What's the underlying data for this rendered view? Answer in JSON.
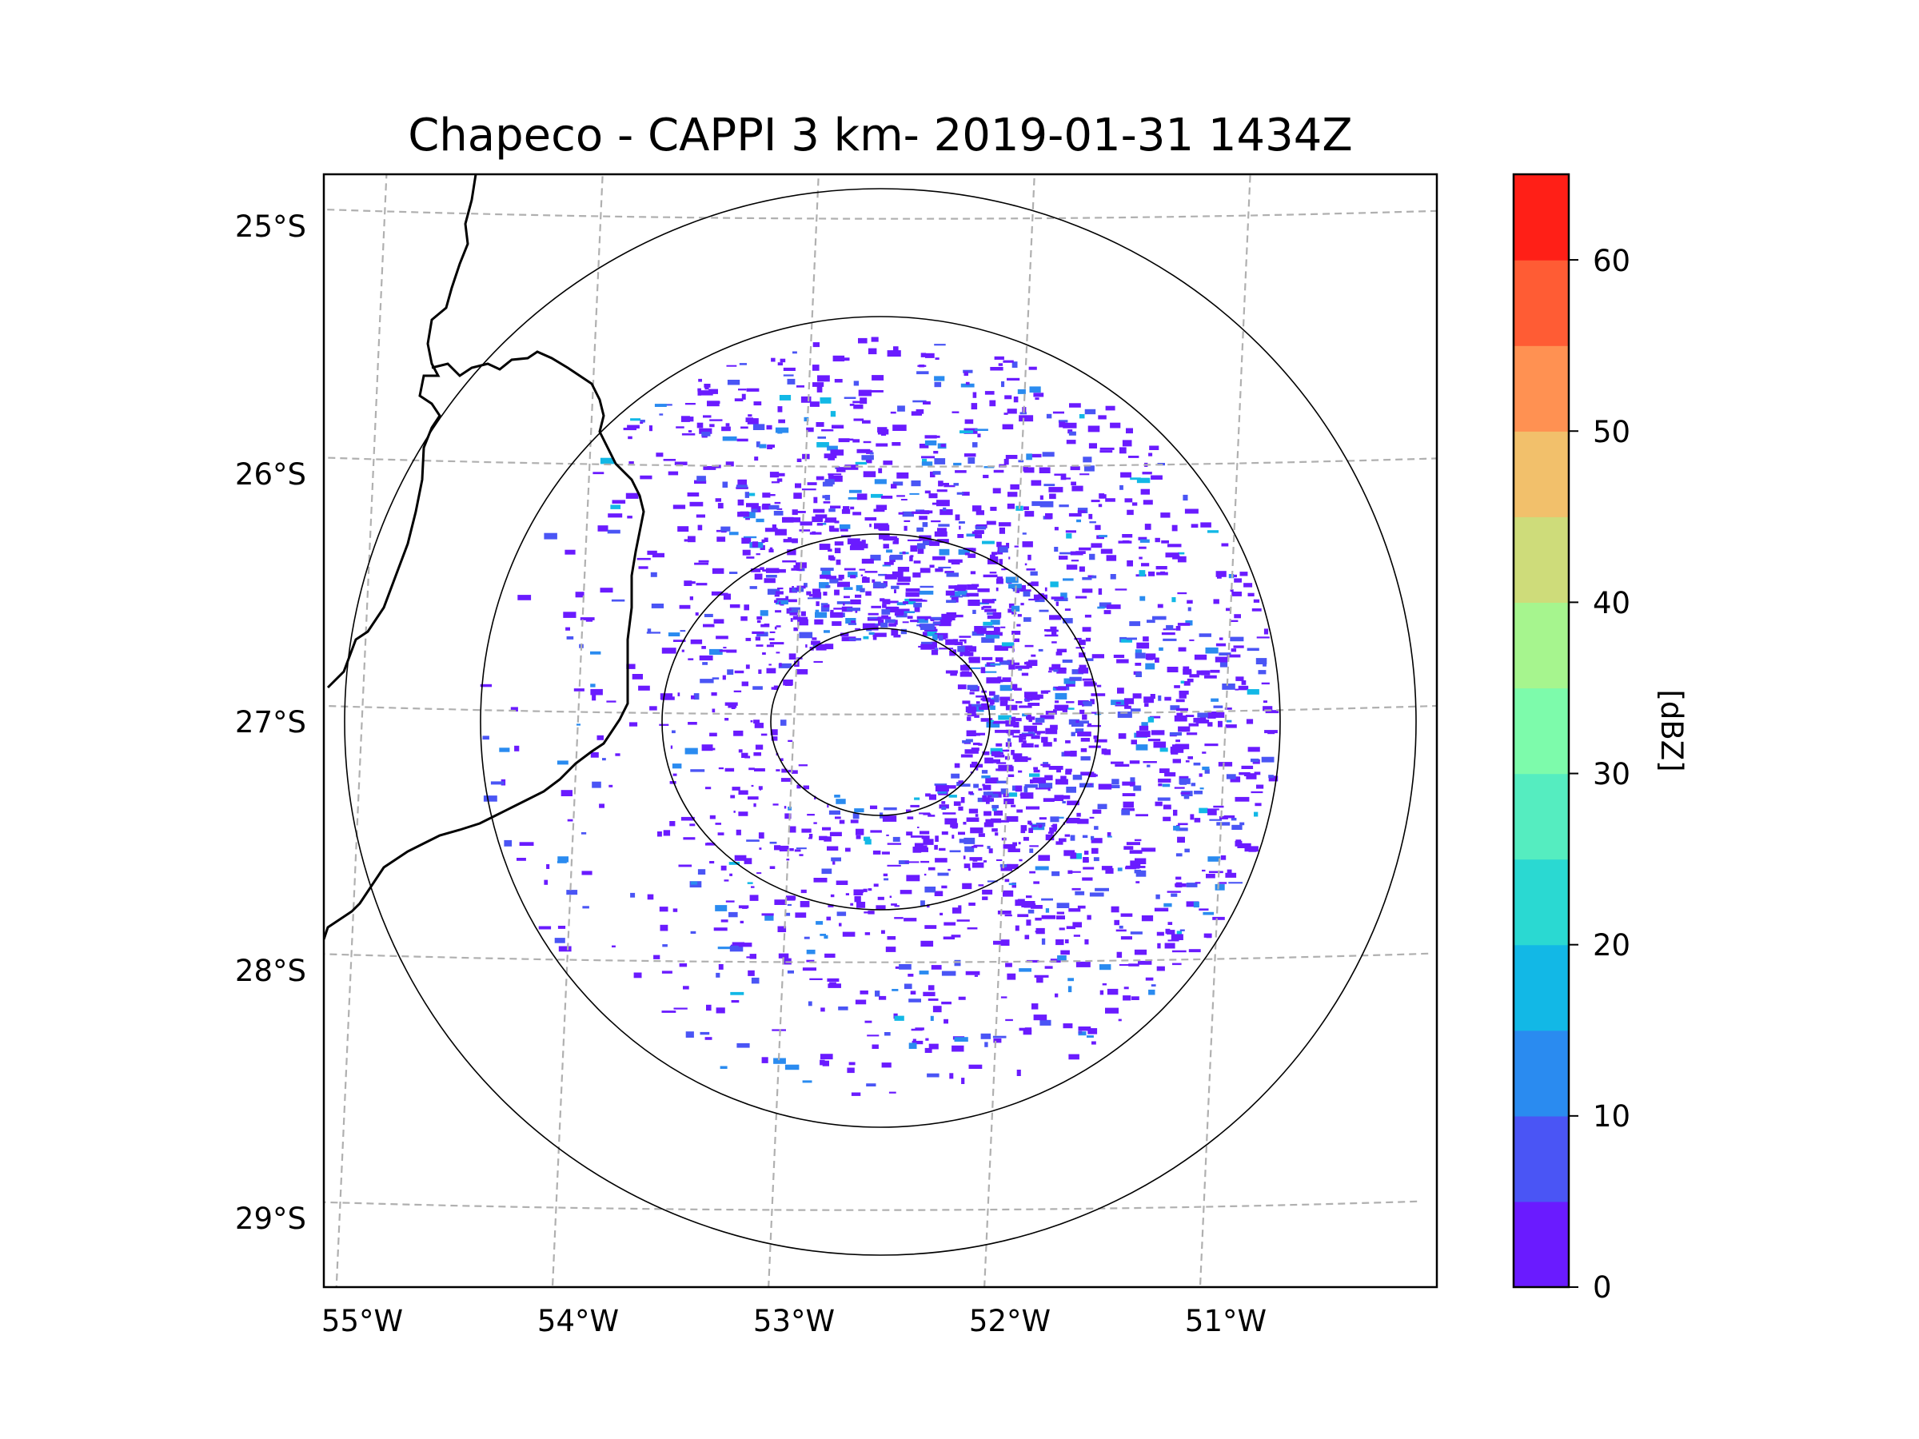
{
  "title": "Chapeco - CAPPI 3 km- 2019-01-31 1434Z",
  "map": {
    "lat_labels": [
      "25°S",
      "26°S",
      "27°S",
      "28°S",
      "29°S"
    ],
    "lon_labels": [
      "55°W",
      "54°W",
      "53°W",
      "52°W",
      "51°W"
    ],
    "lat_values": [
      -25,
      -26,
      -27,
      -28,
      -29
    ],
    "lon_values": [
      -55,
      -54,
      -53,
      -52,
      -51
    ],
    "radar_center": {
      "lon": -52.6,
      "lat": -27.03
    },
    "range_rings": [
      "inner",
      "ring-2",
      "ring-3",
      "outer"
    ],
    "gridline_style": "dashed gray"
  },
  "colorbar": {
    "label": "[dBZ]",
    "tick_labels": [
      "0",
      "10",
      "20",
      "30",
      "40",
      "50",
      "60"
    ],
    "tick_values": [
      0,
      10,
      20,
      30,
      40,
      50,
      60
    ],
    "min": 0,
    "max": 65,
    "step": 5,
    "colors": [
      "#6a1bff",
      "#4a55f5",
      "#2a8bf0",
      "#12b8e6",
      "#2ad9d2",
      "#55edc0",
      "#7dfbab",
      "#a6f58e",
      "#cedc7a",
      "#f2c06b",
      "#ff9152",
      "#ff5c34",
      "#ff1f17"
    ]
  },
  "echo_colors": {
    "weak": "#6a1bff",
    "light": "#4a55f5",
    "moderate": "#2a8bf0",
    "strong": "#12b8e6"
  }
}
